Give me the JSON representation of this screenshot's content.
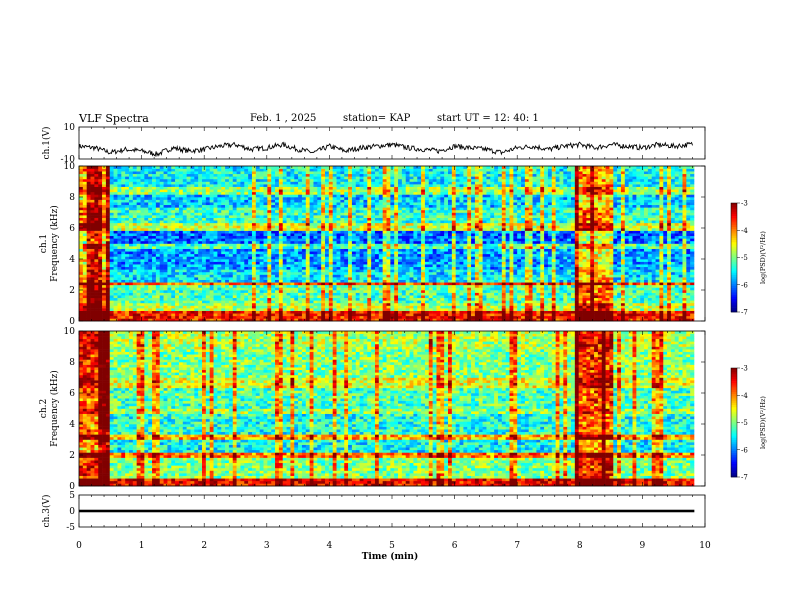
{
  "header": {
    "title": "VLF Spectra",
    "date": "Feb. 1 , 2025",
    "station": "station= KAP",
    "start": "start  UT =   12: 40: 1"
  },
  "colorbar": {
    "label": "log(PSD)(V²/Hz)",
    "ticks": [
      "-3",
      "-4",
      "-5",
      "-6",
      "-7"
    ]
  },
  "chart_data": [
    {
      "type": "line",
      "name": "ch1-waveform",
      "ylabel": "ch.1(V)",
      "ylim": [
        -10,
        10
      ],
      "yticks": [
        "10",
        "-10"
      ],
      "xlim": [
        0,
        10
      ],
      "x": [
        0,
        0.25,
        0.5,
        0.75,
        1,
        1.25,
        1.5,
        1.75,
        2,
        2.25,
        2.5,
        2.75,
        3,
        3.25,
        3.5,
        3.75,
        4,
        4.25,
        4.5,
        4.75,
        5,
        5.25,
        5.5,
        5.75,
        6,
        6.25,
        6.5,
        6.75,
        7,
        7.25,
        7.5,
        7.75,
        8,
        8.25,
        8.5,
        8.75,
        9,
        9.25,
        9.5,
        9.75
      ],
      "y": [
        -2,
        -3,
        -6,
        -4,
        -5,
        -7,
        -3,
        -5,
        -4,
        -2,
        -1,
        -4,
        -3,
        -1,
        -4,
        -6,
        -2,
        -5,
        -3,
        -2,
        -1,
        -3,
        -4,
        -5,
        -2,
        -3,
        -4,
        -6,
        -3,
        -2,
        -4,
        -2,
        -1,
        -3,
        -1,
        -2,
        -3,
        -1,
        -2,
        -1
      ]
    },
    {
      "type": "heatmap",
      "name": "ch1-spectrogram",
      "ylabel": "ch.1 Frequency (kHz)",
      "ylim": [
        0,
        10
      ],
      "yticks": [
        "0",
        "2",
        "4",
        "6",
        "8",
        "10"
      ],
      "xlim": [
        0,
        10
      ],
      "zlim": [
        -7,
        -3
      ],
      "bright_segments_min": [
        [
          0,
          0.5
        ],
        [
          7.95,
          8.55
        ]
      ],
      "bands_khz": [
        {
          "f0": 0.0,
          "f1": 0.6,
          "log_psd": -3.6
        },
        {
          "f0": 0.6,
          "f1": 1.2,
          "log_psd": -4.8
        },
        {
          "f0": 1.2,
          "f1": 2.3,
          "log_psd": -5.2
        },
        {
          "f0": 2.3,
          "f1": 2.5,
          "log_psd": -3.8
        },
        {
          "f0": 2.5,
          "f1": 3.4,
          "log_psd": -5.6
        },
        {
          "f0": 3.4,
          "f1": 4.6,
          "log_psd": -5.9
        },
        {
          "f0": 4.6,
          "f1": 5.0,
          "log_psd": -5.2
        },
        {
          "f0": 5.0,
          "f1": 5.8,
          "log_psd": -6.1
        },
        {
          "f0": 5.8,
          "f1": 6.3,
          "log_psd": -4.7
        },
        {
          "f0": 6.3,
          "f1": 7.3,
          "log_psd": -5.3
        },
        {
          "f0": 7.3,
          "f1": 8.2,
          "log_psd": -5.7
        },
        {
          "f0": 8.2,
          "f1": 8.6,
          "log_psd": -4.9
        },
        {
          "f0": 8.6,
          "f1": 10.0,
          "log_psd": -5.5
        }
      ]
    },
    {
      "type": "heatmap",
      "name": "ch2-spectrogram",
      "ylabel": "ch.2 Frequency (kHz)",
      "ylim": [
        0,
        10
      ],
      "yticks": [
        "0",
        "2",
        "4",
        "6",
        "8",
        "10"
      ],
      "xlim": [
        0,
        10
      ],
      "zlim": [
        -7,
        -3
      ],
      "bright_segments_min": [
        [
          0,
          0.5
        ],
        [
          7.95,
          8.55
        ]
      ],
      "bands_khz": [
        {
          "f0": 0.0,
          "f1": 0.5,
          "log_psd": -3.5
        },
        {
          "f0": 0.5,
          "f1": 1.8,
          "log_psd": -5.0
        },
        {
          "f0": 1.8,
          "f1": 2.1,
          "log_psd": -4.0
        },
        {
          "f0": 2.1,
          "f1": 3.0,
          "log_psd": -5.5
        },
        {
          "f0": 3.0,
          "f1": 3.3,
          "log_psd": -4.2
        },
        {
          "f0": 3.3,
          "f1": 4.6,
          "log_psd": -5.4
        },
        {
          "f0": 4.6,
          "f1": 5.0,
          "log_psd": -4.9
        },
        {
          "f0": 5.0,
          "f1": 6.4,
          "log_psd": -5.2
        },
        {
          "f0": 6.4,
          "f1": 7.0,
          "log_psd": -4.6
        },
        {
          "f0": 7.0,
          "f1": 8.8,
          "log_psd": -5.0
        },
        {
          "f0": 8.8,
          "f1": 10.0,
          "log_psd": -4.8
        }
      ]
    },
    {
      "type": "line",
      "name": "ch3-waveform",
      "ylabel": "ch.3(V)",
      "ylim": [
        -5,
        5
      ],
      "yticks": [
        "5",
        "0",
        "-5"
      ],
      "xlim": [
        0,
        10
      ],
      "xlabel": "Time  (min)",
      "xticks": [
        "0",
        "1",
        "2",
        "3",
        "4",
        "5",
        "6",
        "7",
        "8",
        "9",
        "10"
      ],
      "y_band": [
        -0.4,
        0.4
      ]
    }
  ]
}
